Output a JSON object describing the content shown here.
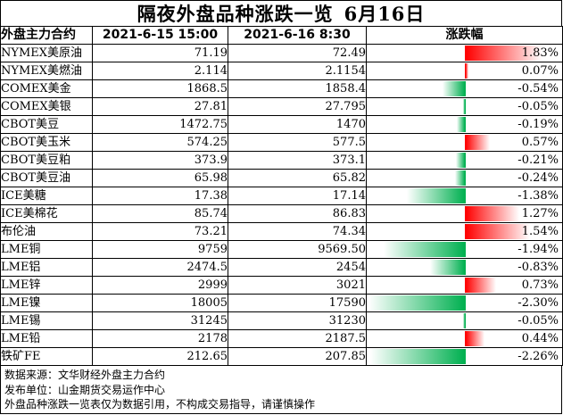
{
  "title": {
    "main": "隔夜外盘品种涨跌一览",
    "date": "6月16日"
  },
  "columns": {
    "name": "外盘主力合约",
    "prev": "2021-6-15 15:00",
    "curr": "2021-6-16 8:30",
    "change": "涨跌幅"
  },
  "rows": [
    {
      "name": "NYMEX美原油",
      "prev": "71.19",
      "curr": "72.49",
      "change": "1.83%",
      "pct": 1.83
    },
    {
      "name": "NYMEX美燃油",
      "prev": "2.114",
      "curr": "2.1154",
      "change": "0.07%",
      "pct": 0.07
    },
    {
      "name": "COMEX美金",
      "prev": "1868.5",
      "curr": "1858.4",
      "change": "-0.54%",
      "pct": -0.54
    },
    {
      "name": "COMEX美银",
      "prev": "27.81",
      "curr": "27.795",
      "change": "-0.05%",
      "pct": -0.05
    },
    {
      "name": "CBOT美豆",
      "prev": "1472.75",
      "curr": "1470",
      "change": "-0.19%",
      "pct": -0.19
    },
    {
      "name": "CBOT美玉米",
      "prev": "574.25",
      "curr": "577.5",
      "change": "0.57%",
      "pct": 0.57
    },
    {
      "name": "CBOT美豆粕",
      "prev": "373.9",
      "curr": "373.1",
      "change": "-0.21%",
      "pct": -0.21
    },
    {
      "name": "CBOT美豆油",
      "prev": "65.98",
      "curr": "65.82",
      "change": "-0.24%",
      "pct": -0.24
    },
    {
      "name": "ICE美糖",
      "prev": "17.38",
      "curr": "17.14",
      "change": "-1.38%",
      "pct": -1.38
    },
    {
      "name": "ICE美棉花",
      "prev": "85.74",
      "curr": "86.83",
      "change": "1.27%",
      "pct": 1.27
    },
    {
      "name": "布伦油",
      "prev": "73.21",
      "curr": "74.34",
      "change": "1.54%",
      "pct": 1.54
    },
    {
      "name": "LME铜",
      "prev": "9759",
      "curr": "9569.50",
      "change": "-1.94%",
      "pct": -1.94
    },
    {
      "name": "LME铝",
      "prev": "2474.5",
      "curr": "2454",
      "change": "-0.83%",
      "pct": -0.83
    },
    {
      "name": "LME锌",
      "prev": "2999",
      "curr": "3021",
      "change": "0.73%",
      "pct": 0.73
    },
    {
      "name": "LME镍",
      "prev": "18005",
      "curr": "17590",
      "change": "-2.30%",
      "pct": -2.3
    },
    {
      "name": "LME锡",
      "prev": "31245",
      "curr": "31230",
      "change": "-0.05%",
      "pct": -0.05
    },
    {
      "name": "LME铅",
      "prev": "2178",
      "curr": "2187.5",
      "change": "0.44%",
      "pct": 0.44
    },
    {
      "name": "铁矿FE",
      "prev": "212.65",
      "curr": "207.85",
      "change": "-2.26%",
      "pct": -2.26
    }
  ],
  "footer": {
    "source": "数据来源：文华财经外盘主力合约",
    "publisher": "发布单位：山金期货交易运作中心",
    "disclaimer": "外盘品种涨跌一览表仅为数据引用，不构成交易指导，请谨慎操作"
  },
  "colors": {
    "up": "#ff0000",
    "down": "#00b050",
    "border": "#000000"
  },
  "bar_scale_max": 2.3
}
